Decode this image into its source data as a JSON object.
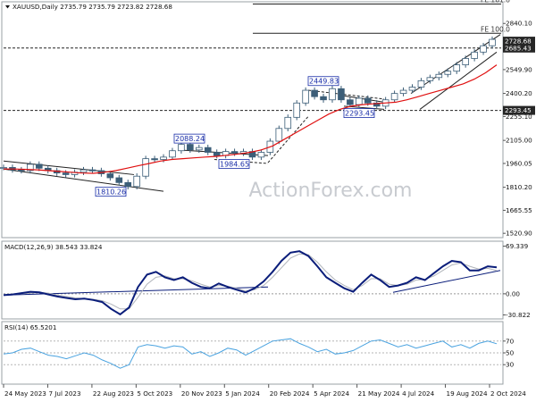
{
  "chart_data": [
    {
      "type": "candlestick",
      "symbol": "XAUUSD",
      "timeframe": "Daily",
      "ohlc": {
        "open": "2735.79",
        "high": "2735.79",
        "low": "2723.82",
        "close": "2728.68"
      },
      "ylim": [
        1505,
        2965
      ],
      "yticks": [
        1520.9,
        1665.55,
        1810.2,
        1960.05,
        2105.0,
        2255.1,
        2400.2,
        2549.9,
        2695.0,
        2840.1
      ],
      "ytick_labels": [
        "1520.90",
        "1665.55",
        "1810.20",
        "1960.05",
        "2105.00",
        "2255.10",
        "2400.20",
        "2549.90",
        "2695.00",
        "2840.10"
      ],
      "price_labels": [
        {
          "text": "2728.68",
          "value": 2728.68,
          "color": "#262626"
        },
        {
          "text": "2685.43",
          "value": 2685.43,
          "color": "#262626"
        },
        {
          "text": "2293.45",
          "value": 2293.45,
          "color": "#262626"
        }
      ],
      "fib_levels": [
        {
          "label": "FE 161.8",
          "value": 2962
        },
        {
          "label": "FE 100.0",
          "value": 2778
        }
      ],
      "horizontal_levels": [
        2685.43,
        2293.45
      ],
      "annotations": [
        {
          "text": "2449.83",
          "value": 2449.83
        },
        {
          "text": "2088.24",
          "value": 2088.24
        },
        {
          "text": "1984.65",
          "value": 1984.65
        },
        {
          "text": "1810.26",
          "value": 1810.26
        },
        {
          "text": "2293.45",
          "value": 2293.45
        }
      ],
      "ma_color": "#e01010",
      "candle_color": "#3c5e78",
      "price_series_sampled": [
        1935,
        1920,
        1915,
        1955,
        1930,
        1915,
        1900,
        1890,
        1905,
        1920,
        1915,
        1895,
        1870,
        1840,
        1815,
        1880,
        1990,
        1985,
        2000,
        2040,
        2080,
        2045,
        2060,
        2030,
        2010,
        2035,
        2025,
        2035,
        2000,
        2030,
        2100,
        2180,
        2250,
        2340,
        2420,
        2380,
        2360,
        2430,
        2360,
        2330,
        2370,
        2340,
        2320,
        2360,
        2400,
        2420,
        2440,
        2480,
        2500,
        2520,
        2540,
        2580,
        2620,
        2660,
        2700,
        2740
      ],
      "ma_series_sampled": [
        1925,
        1925,
        1923,
        1920,
        1915,
        1910,
        1905,
        1900,
        1898,
        1905,
        1915,
        1930,
        1945,
        1960,
        1975,
        1985,
        1990,
        1995,
        2000,
        2005,
        2012,
        2020,
        2030,
        2045,
        2070,
        2110,
        2150,
        2190,
        2230,
        2270,
        2300,
        2320,
        2330,
        2335,
        2340,
        2345,
        2360,
        2380,
        2400,
        2420,
        2440,
        2460,
        2490,
        2530,
        2580
      ],
      "x_dates": [
        "24 May 2023",
        "7 Jul 2023",
        "22 Aug 2023",
        "5 Oct 2023",
        "20 Nov 2023",
        "5 Jan 2024",
        "20 Feb 2024",
        "5 Apr 2024",
        "21 May 2024",
        "4 Jul 2024",
        "19 Aug 2024",
        "2 Oct 2024"
      ],
      "watermark": "ActionForex.com"
    },
    {
      "type": "line",
      "name": "MACD",
      "header": "MACD(12,26,9) 38.543 33.824",
      "ylim": [
        -34,
        74
      ],
      "yticks": [
        69.339,
        0.0,
        -30.822
      ],
      "ytick_labels": [
        "69.339",
        "0.00",
        "-30.822"
      ],
      "series": [
        {
          "name": "MACD",
          "color": "#0a1d7a",
          "values": [
            -2,
            -1,
            1,
            3,
            2,
            -1,
            -4,
            -6,
            -8,
            -7,
            -9,
            -12,
            -22,
            -30,
            -20,
            10,
            28,
            32,
            24,
            20,
            24,
            16,
            10,
            8,
            15,
            10,
            6,
            2,
            8,
            18,
            32,
            48,
            60,
            62,
            55,
            40,
            24,
            16,
            8,
            3,
            16,
            28,
            20,
            10,
            12,
            16,
            24,
            20,
            30,
            40,
            48,
            46,
            34,
            34,
            40,
            38.5
          ]
        },
        {
          "name": "Signal",
          "color": "#b0b4ba",
          "values": [
            -1,
            -1,
            0,
            1,
            2,
            1,
            -2,
            -4,
            -6,
            -7,
            -8,
            -10,
            -15,
            -22,
            -22,
            -5,
            14,
            24,
            26,
            22,
            22,
            19,
            14,
            10,
            12,
            11,
            8,
            4,
            6,
            12,
            24,
            38,
            52,
            58,
            57,
            46,
            32,
            20,
            12,
            6,
            12,
            22,
            22,
            14,
            12,
            14,
            20,
            21,
            26,
            34,
            42,
            45,
            40,
            36,
            37,
            33.8
          ]
        }
      ]
    },
    {
      "type": "line",
      "name": "RSI",
      "header": "RSI(14) 65.5201",
      "ylim": [
        0,
        100
      ],
      "yticks": [
        70,
        50,
        30
      ],
      "ytick_labels": [
        "70",
        "50",
        "30"
      ],
      "series": [
        {
          "name": "RSI",
          "color": "#4aa3e0",
          "values": [
            48,
            50,
            56,
            58,
            52,
            46,
            44,
            40,
            45,
            50,
            46,
            38,
            32,
            24,
            30,
            60,
            64,
            62,
            58,
            62,
            60,
            48,
            52,
            44,
            50,
            58,
            55,
            46,
            54,
            62,
            70,
            72,
            74,
            66,
            60,
            52,
            56,
            48,
            50,
            54,
            62,
            70,
            72,
            66,
            60,
            64,
            58,
            62,
            66,
            70,
            60,
            64,
            58,
            66,
            70,
            65.5
          ]
        }
      ]
    }
  ],
  "header": {
    "title": "XAUUSD,Daily  2735.79 2735.79 2723.82 2728.68",
    "macd": "MACD(12,26,9) 38.543 33.824",
    "rsi": "RSI(14) 65.5201"
  }
}
